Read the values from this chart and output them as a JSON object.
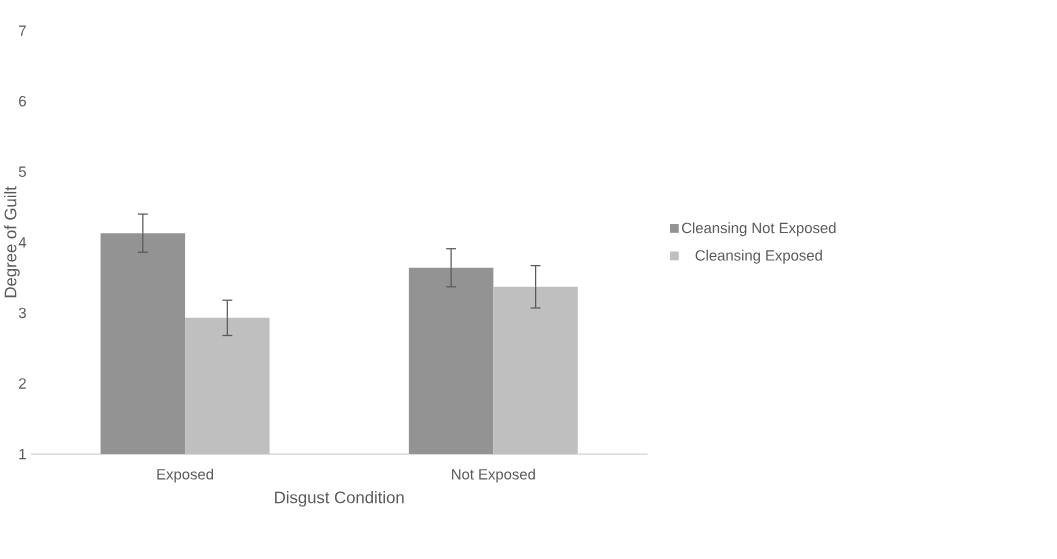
{
  "chart_data": {
    "type": "bar",
    "xlabel": "Disgust Condition",
    "ylabel": "Degree of Guilt",
    "categories": [
      "Exposed",
      "Not Exposed"
    ],
    "series": [
      {
        "name": "Cleansing Not Exposed",
        "color": "#939393",
        "values": [
          4.13,
          3.64
        ],
        "errors": [
          0.27,
          0.27
        ]
      },
      {
        "name": "Cleansing Exposed",
        "color": "#bfbfbf",
        "values": [
          2.93,
          3.37
        ],
        "errors": [
          0.25,
          0.3
        ]
      }
    ],
    "ylim": [
      1,
      7
    ],
    "yticks": [
      1,
      2,
      3,
      4,
      5,
      6,
      7
    ],
    "grid": false,
    "legend": "right"
  }
}
